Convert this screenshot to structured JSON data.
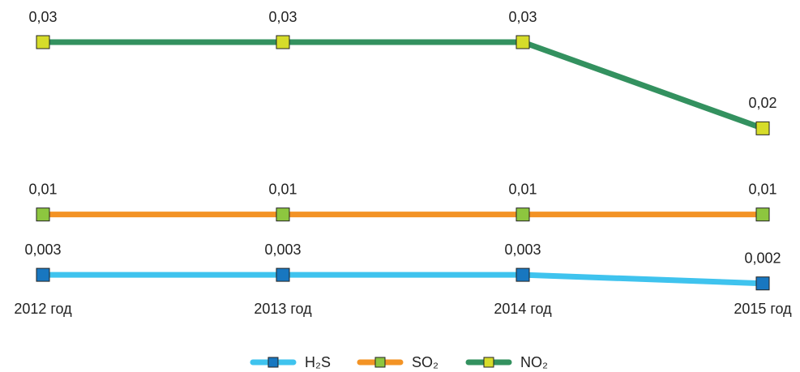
{
  "chart_data": {
    "type": "line",
    "categories": [
      "2012 год",
      "2013 год",
      "2014 год",
      "2015 год"
    ],
    "ylim": [
      0,
      0.03
    ],
    "series": [
      {
        "name": "H₂S",
        "color": "#3fc3ee",
        "marker_color": "#1877c0",
        "values": [
          0.003,
          0.003,
          0.003,
          0.002
        ],
        "value_labels": [
          "0,003",
          "0,003",
          "0,003",
          "0,002"
        ]
      },
      {
        "name": "SO₂",
        "color": "#f39325",
        "marker_color": "#8dc63f",
        "values": [
          0.01,
          0.01,
          0.01,
          0.01
        ],
        "value_labels": [
          "0,01",
          "0,01",
          "0,01",
          "0,01"
        ]
      },
      {
        "name": "NO₂",
        "color": "#33915f",
        "marker_color": "#d6dc2a",
        "values": [
          0.03,
          0.03,
          0.03,
          0.02
        ],
        "value_labels": [
          "0,03",
          "0,03",
          "0,03",
          "0,02"
        ]
      }
    ]
  }
}
